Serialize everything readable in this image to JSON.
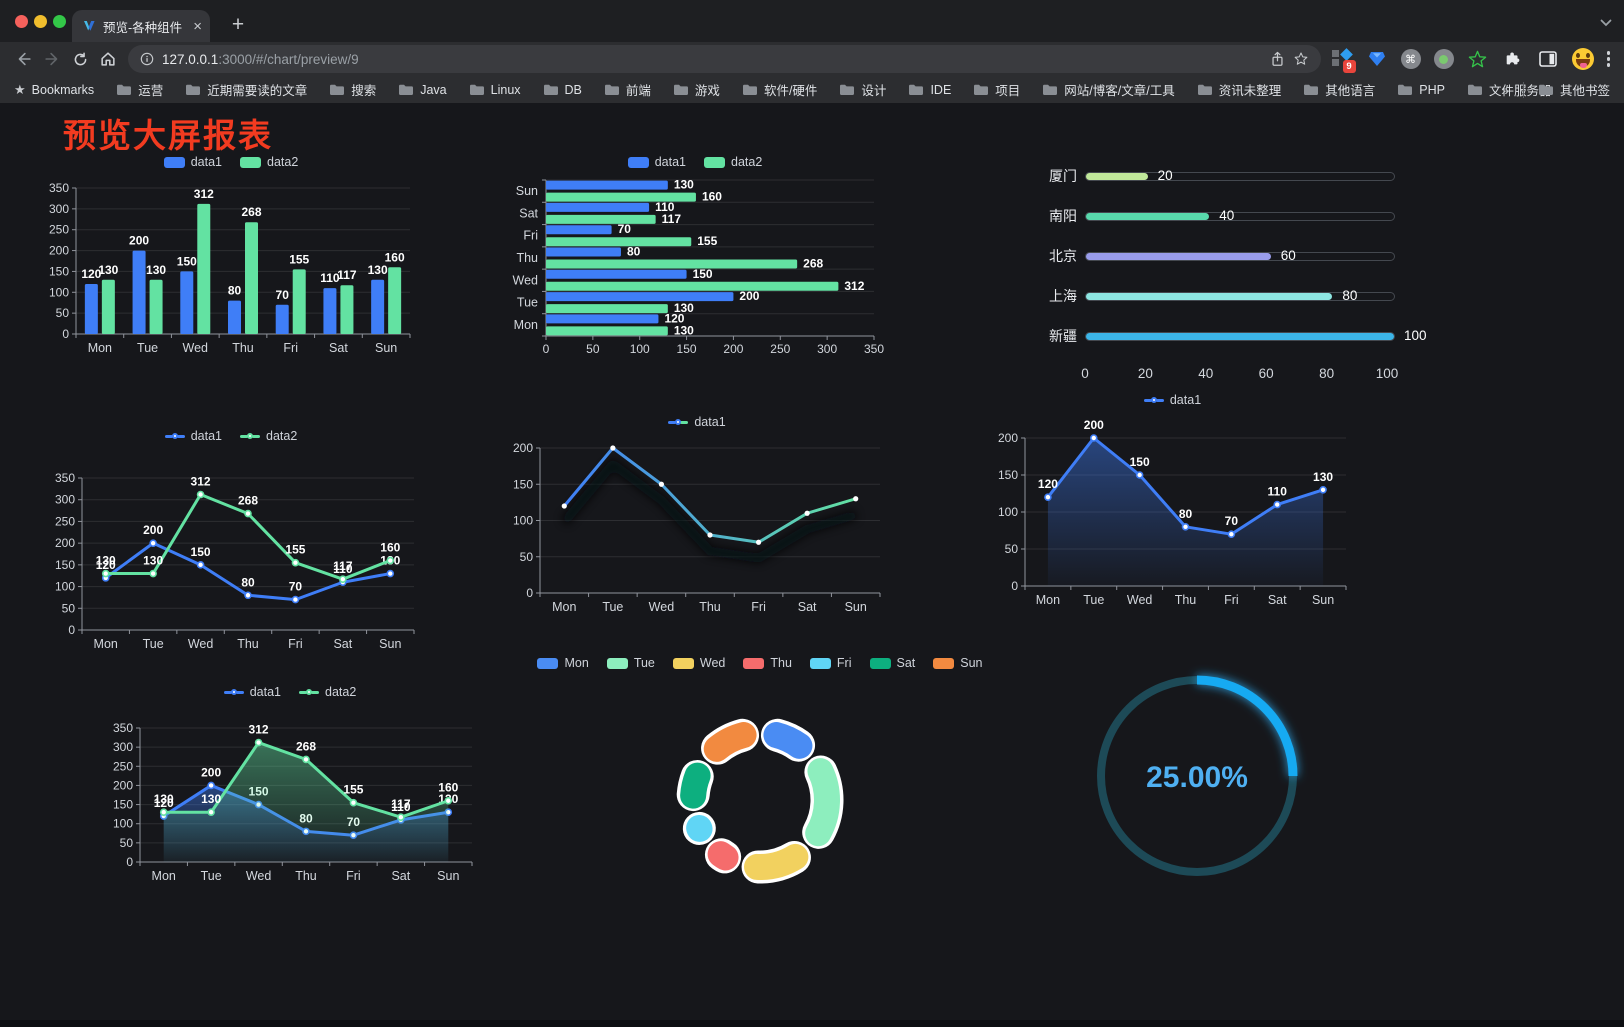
{
  "browser": {
    "tab": {
      "title": "预览-各种组件",
      "close_glyph": "×"
    },
    "new_tab_glyph": "+",
    "url": {
      "host": "127.0.0.1",
      "rest": ":3000/#/chart/preview/9"
    },
    "bookmarks_bar": {
      "bookmarks_label": "Bookmarks",
      "folders": [
        "运营",
        "近期需要读的文章",
        "搜索",
        "Java",
        "Linux",
        "DB",
        "前端",
        "游戏",
        "软件/硬件",
        "设计",
        "IDE",
        "项目",
        "网站/博客/文章/工具",
        "资讯未整理",
        "其他语言",
        "PHP",
        "文件服务器"
      ],
      "overflow_glyph": "»",
      "other_bookmarks": "其他书签"
    },
    "extensions": {
      "badge": "9"
    }
  },
  "page": {
    "title": "预览大屏报表",
    "title_color": "#f23b20",
    "background": "#16171b"
  },
  "days": [
    "Mon",
    "Tue",
    "Wed",
    "Thu",
    "Fri",
    "Sat",
    "Sun"
  ],
  "chart_data": [
    {
      "id": "grouped-bar",
      "type": "bar",
      "categories": [
        "Mon",
        "Tue",
        "Wed",
        "Thu",
        "Fri",
        "Sat",
        "Sun"
      ],
      "series": [
        {
          "name": "data1",
          "color": "#3f7ef7",
          "values": [
            120,
            200,
            150,
            80,
            70,
            110,
            130
          ]
        },
        {
          "name": "data2",
          "color": "#63e2a2",
          "values": [
            130,
            130,
            312,
            268,
            155,
            117,
            160
          ]
        }
      ],
      "ylim": [
        0,
        350
      ],
      "ytick": 50,
      "legend_position": "top",
      "grid": true,
      "labels": true
    },
    {
      "id": "grouped-bar-horizontal",
      "type": "bar",
      "orientation": "horizontal",
      "categories": [
        "Mon",
        "Tue",
        "Wed",
        "Thu",
        "Fri",
        "Sat",
        "Sun"
      ],
      "series": [
        {
          "name": "data1",
          "color": "#3f7ef7",
          "values": [
            120,
            200,
            150,
            80,
            70,
            110,
            130
          ]
        },
        {
          "name": "data2",
          "color": "#63e2a2",
          "values": [
            130,
            130,
            312,
            268,
            155,
            117,
            160
          ]
        }
      ],
      "xlim": [
        0,
        350
      ],
      "xtick": 50,
      "legend_position": "top",
      "labels": true
    },
    {
      "id": "city-progress",
      "type": "bar",
      "subtype": "progress-list",
      "rows": [
        {
          "label": "厦门",
          "value": 20,
          "color": "#c0e89a"
        },
        {
          "label": "南阳",
          "value": 40,
          "color": "#58d9ac"
        },
        {
          "label": "北京",
          "value": 60,
          "color": "#999ceb"
        },
        {
          "label": "上海",
          "value": 80,
          "color": "#8de6e2"
        },
        {
          "label": "新疆",
          "value": 100,
          "color": "#3cb5e8"
        }
      ],
      "xticks": [
        0,
        20,
        40,
        60,
        80,
        100
      ],
      "max": 100
    },
    {
      "id": "two-line",
      "type": "line",
      "categories": [
        "Mon",
        "Tue",
        "Wed",
        "Thu",
        "Fri",
        "Sat",
        "Sun"
      ],
      "series": [
        {
          "name": "data1",
          "color": "#3f7ef7",
          "values": [
            120,
            200,
            150,
            80,
            70,
            110,
            130
          ]
        },
        {
          "name": "data2",
          "color": "#63e2a2",
          "values": [
            130,
            130,
            312,
            268,
            155,
            117,
            160
          ]
        }
      ],
      "ylim": [
        0,
        350
      ],
      "ytick": 50,
      "labels": true,
      "legend_position": "top"
    },
    {
      "id": "gradient-line",
      "type": "line",
      "categories": [
        "Mon",
        "Tue",
        "Wed",
        "Thu",
        "Fri",
        "Sat",
        "Sun"
      ],
      "series": [
        {
          "name": "data1",
          "gradient": [
            "#3f7ef7",
            "#63e2a2"
          ],
          "values": [
            120,
            200,
            150,
            80,
            70,
            110,
            130
          ]
        }
      ],
      "ylim": [
        0,
        200
      ],
      "ytick": 50,
      "labels": false,
      "shadow": true,
      "legend_position": "top"
    },
    {
      "id": "area-line",
      "type": "area",
      "categories": [
        "Mon",
        "Tue",
        "Wed",
        "Thu",
        "Fri",
        "Sat",
        "Sun"
      ],
      "series": [
        {
          "name": "data1",
          "color": "#3f7ef7",
          "area": true,
          "values": [
            120,
            200,
            150,
            80,
            70,
            110,
            130
          ]
        }
      ],
      "ylim": [
        0,
        200
      ],
      "ytick": 50,
      "labels": true,
      "legend_position": "top"
    },
    {
      "id": "two-area-line",
      "type": "area",
      "categories": [
        "Mon",
        "Tue",
        "Wed",
        "Thu",
        "Fri",
        "Sat",
        "Sun"
      ],
      "series": [
        {
          "name": "data1",
          "color": "#3f7ef7",
          "area": true,
          "values": [
            120,
            200,
            150,
            80,
            70,
            110,
            130
          ]
        },
        {
          "name": "data2",
          "color": "#63e2a2",
          "area": true,
          "values": [
            130,
            130,
            312,
            268,
            155,
            117,
            160
          ]
        }
      ],
      "ylim": [
        0,
        350
      ],
      "ytick": 50,
      "labels": true,
      "legend_position": "top"
    },
    {
      "id": "donut",
      "type": "pie",
      "inner_radius_ratio": 0.62,
      "legend_position": "top",
      "slices": [
        {
          "label": "Mon",
          "value": 120,
          "color": "#4a8cf3"
        },
        {
          "label": "Tue",
          "value": 200,
          "color": "#8deebe"
        },
        {
          "label": "Wed",
          "value": 150,
          "color": "#f2d15f"
        },
        {
          "label": "Thu",
          "value": 80,
          "color": "#f56c6c"
        },
        {
          "label": "Fri",
          "value": 70,
          "color": "#60d5f5"
        },
        {
          "label": "Sat",
          "value": 110,
          "color": "#0daf7f"
        },
        {
          "label": "Sun",
          "value": 130,
          "color": "#f28a40"
        }
      ]
    },
    {
      "id": "gauge",
      "type": "gauge",
      "value": 25,
      "max": 100,
      "display": "25.00%",
      "color": "#16aaf2",
      "track_color": "#1d4a57",
      "text_color": "#4fb0f2"
    }
  ]
}
